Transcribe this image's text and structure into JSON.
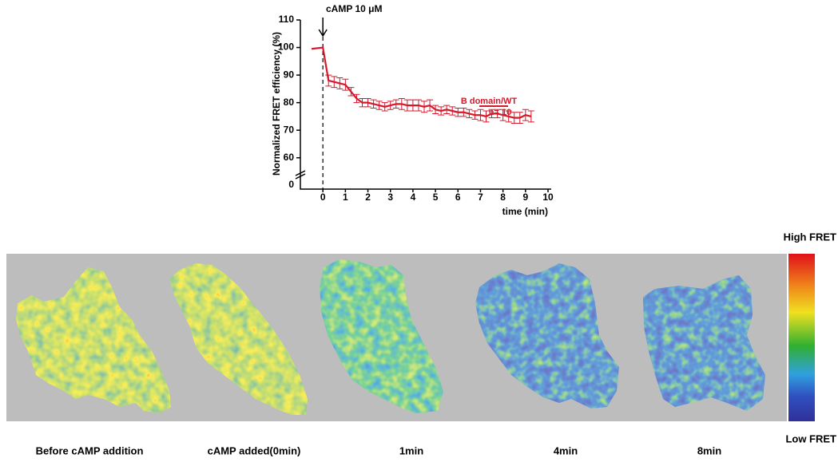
{
  "chart_data": {
    "type": "line",
    "annotation": "cAMP 10 μM",
    "ylabel": "Normalized FRET efficiency (%)",
    "xlabel": "time (min)",
    "x": [
      -0.5,
      0,
      0.25,
      0.5,
      0.75,
      1.0,
      1.25,
      1.5,
      1.75,
      2.0,
      2.25,
      2.5,
      2.75,
      3.0,
      3.25,
      3.5,
      3.75,
      4.0,
      4.25,
      4.5,
      4.75,
      5.0,
      5.25,
      5.5,
      5.75,
      6.0,
      6.25,
      6.5,
      6.75,
      7.0,
      7.25,
      7.5,
      7.75,
      8.0,
      8.25,
      8.5,
      8.75,
      9.0,
      9.25
    ],
    "series": [
      {
        "name": "B domain/WT",
        "color": "#d7182a",
        "values": [
          99.5,
          100,
          88,
          87.5,
          87,
          86.5,
          84,
          81.5,
          80,
          80,
          79.5,
          79,
          78.5,
          79,
          79.5,
          79.5,
          79,
          79,
          79,
          78.5,
          79,
          77.5,
          77,
          77.5,
          77,
          76.5,
          76.5,
          76,
          75.5,
          75.5,
          75,
          76,
          76,
          75.5,
          75,
          74.5,
          74.5,
          75.5,
          75
        ],
        "errors": [
          null,
          null,
          2,
          2,
          2,
          2,
          1.5,
          1.5,
          1.5,
          1.5,
          1.5,
          1.5,
          1.5,
          1.5,
          1.5,
          2,
          2,
          2,
          2,
          2,
          2,
          1.5,
          1.5,
          1.5,
          1.5,
          1.5,
          1.5,
          1.5,
          1.5,
          2,
          2,
          1.5,
          1.5,
          2,
          2,
          2,
          2,
          2,
          2
        ]
      }
    ],
    "annotation_n": "n= 10",
    "xlim": [
      -1,
      10
    ],
    "xticks": [
      0,
      1,
      2,
      3,
      4,
      5,
      6,
      7,
      8,
      9,
      10
    ],
    "ylim": [
      55,
      110
    ],
    "yticks": [
      60,
      70,
      80,
      90,
      100,
      110
    ],
    "y_origin": 0,
    "event_x": 0
  },
  "panels": [
    "Before cAMP addition",
    "cAMP added(0min)",
    "1min",
    "4min",
    "8min"
  ],
  "colorbar": {
    "high": "High FRET",
    "low": "Low FRET"
  }
}
